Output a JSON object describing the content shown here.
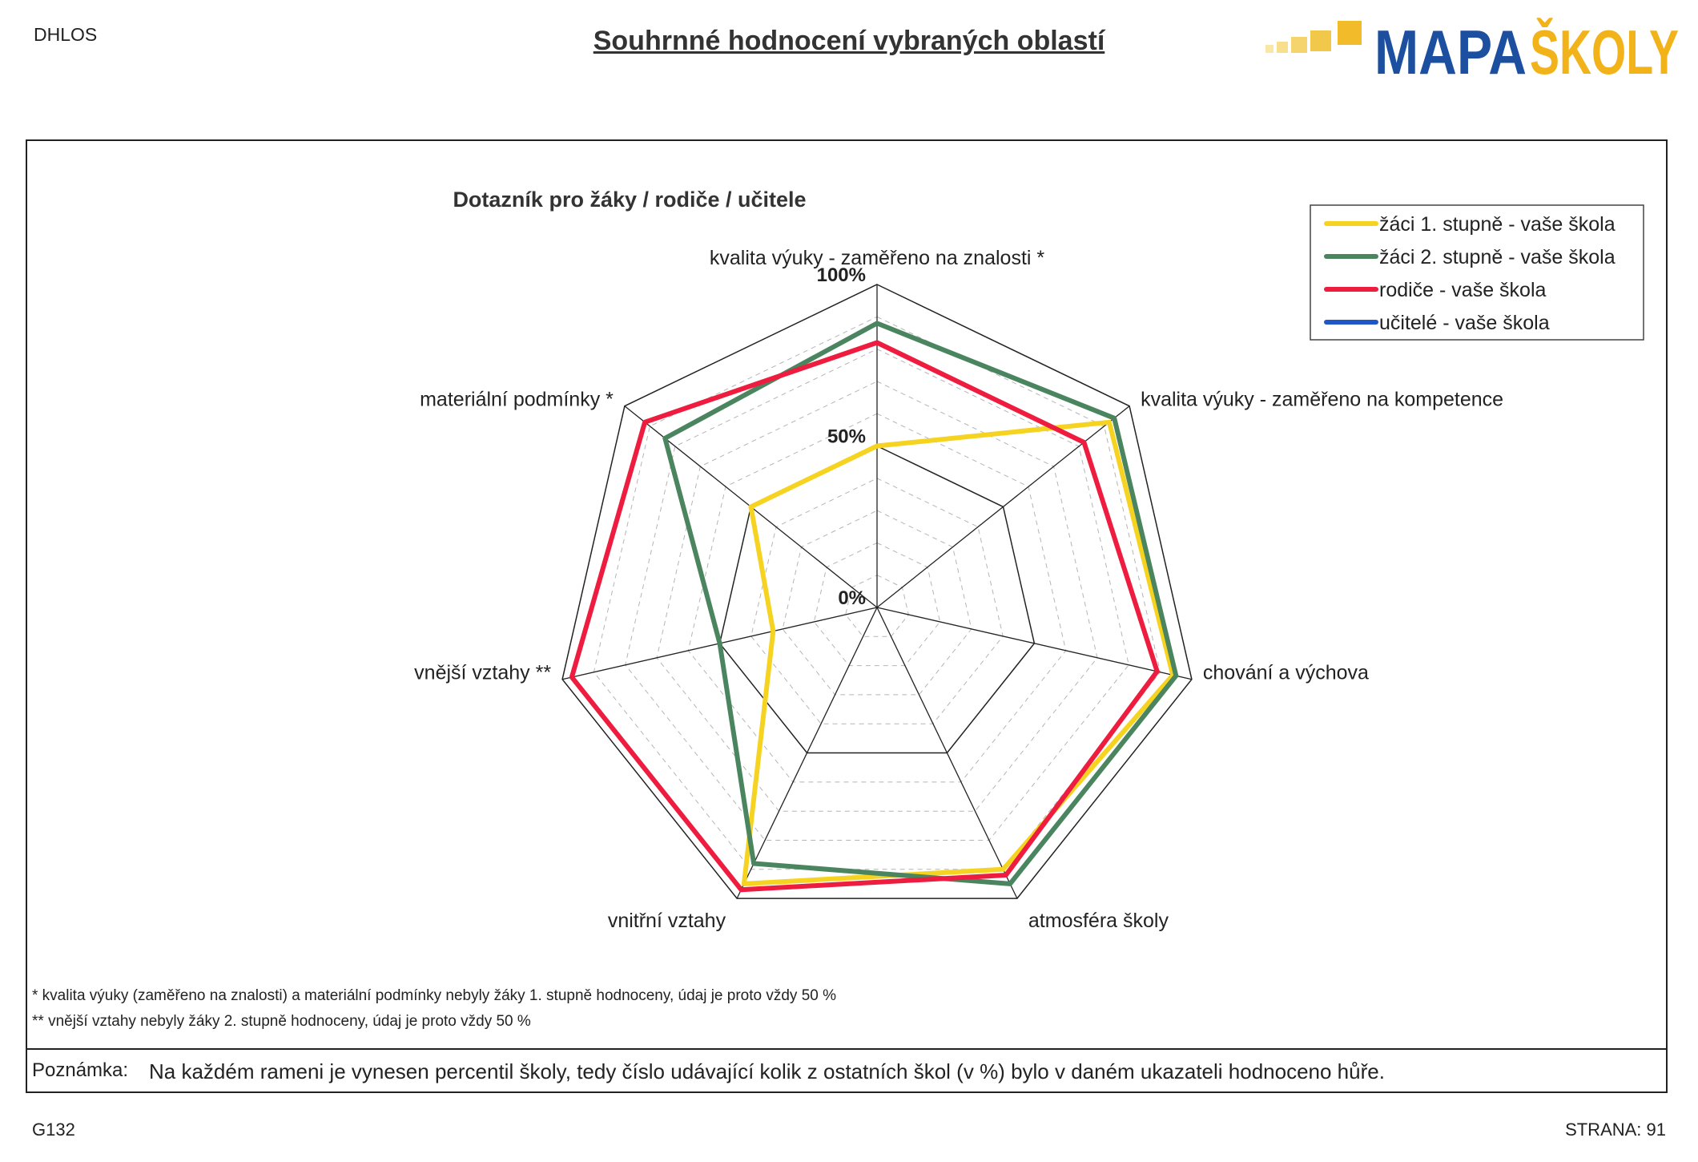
{
  "header": {
    "code": "DHLOS",
    "title": "Souhrnné hodnocení vybraných oblastí",
    "logo": {
      "text_main": "MAPA",
      "text_accent": "ŠKOLY",
      "main_color": "#1c4fa0",
      "accent_color": "#f2b21a"
    }
  },
  "chart_data": {
    "type": "radar",
    "title": "Dotazník pro žáky / rodiče / učitele",
    "axes": [
      "kvalita výuky - zaměřeno na znalosti *",
      "kvalita výuky - zaměřeno na kompetence",
      "chování a výchova",
      "atmosféra školy",
      "vnitřní vztahy",
      "vnější vztahy **",
      "materiální podmínky *"
    ],
    "ticks": [
      {
        "value": 0,
        "label": "0%"
      },
      {
        "value": 50,
        "label": "50%"
      },
      {
        "value": 100,
        "label": "100%"
      }
    ],
    "range": [
      0,
      100
    ],
    "grid_steps": 10,
    "legend_position": "top-right",
    "series": [
      {
        "name": "žáci 1. stupně - vaše škola",
        "color": "#f5d320",
        "values": [
          50,
          92,
          94,
          90,
          95,
          33,
          50
        ]
      },
      {
        "name": "žáci 2. stupně - vaše škola",
        "color": "#4a8560",
        "values": [
          88,
          94,
          95,
          95,
          88,
          50,
          84
        ]
      },
      {
        "name": "rodiče - vaše škola",
        "color": "#ee1c3e",
        "values": [
          82,
          82,
          89,
          92,
          97,
          97,
          92
        ]
      },
      {
        "name": "učitelé - vaše škola",
        "color": "#1f57c6",
        "values": []
      }
    ]
  },
  "footnotes": [
    "* kvalita výuky (zaměřeno na znalosti) a materiální podmínky nebyly žáky 1. stupně hodnoceny, údaj je proto vždy 50 %",
    "** vnější vztahy nebyly žáky 2. stupně hodnoceny, údaj je proto vždy 50 %"
  ],
  "note": {
    "label": "Poznámka:",
    "text": "Na každém rameni je vynesen percentil školy, tedy číslo udávající kolik z ostatních škol (v %) bylo v daném ukazateli hodnoceno hůře."
  },
  "footer": {
    "code": "G132",
    "page": "STRANA: 91"
  }
}
